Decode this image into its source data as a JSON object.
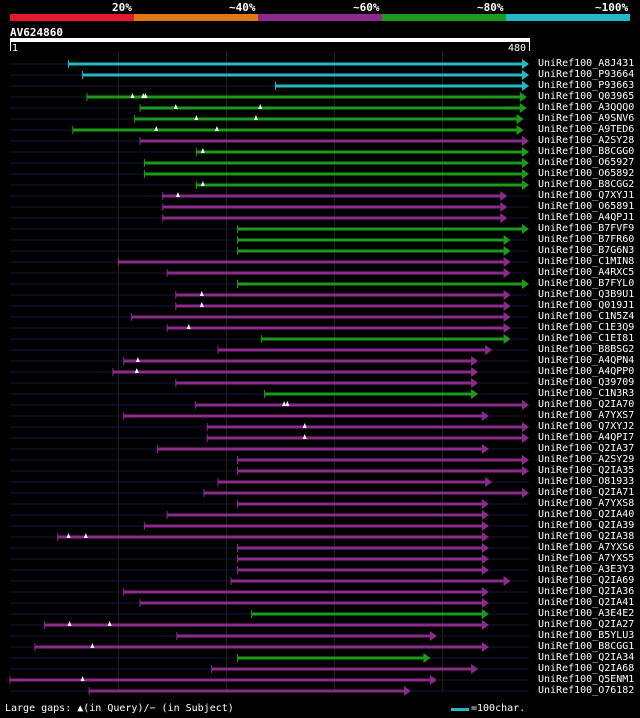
{
  "legend": {
    "labels": [
      "20%",
      "~40%",
      "~60%",
      "~80%",
      "~100%"
    ],
    "colors": [
      "#e01b2e",
      "#e07818",
      "#8c2a8c",
      "#1c9a1c",
      "#22b8c4"
    ]
  },
  "query": {
    "id": "AV624860",
    "start_label": "1",
    "end_label": "480",
    "length": 480
  },
  "footer": {
    "text": "Large gaps: ▲(in Query)/− (in Subject)",
    "scale_text": "=100char."
  },
  "hits": [
    {
      "id": "UniRef100_A8J431",
      "q_start": 55,
      "q_end": 480,
      "tier": 4,
      "row": 0
    },
    {
      "id": "UniRef100_P93664",
      "q_start": 68,
      "q_end": 480,
      "tier": 4,
      "row": 1
    },
    {
      "id": "UniRef100_P93663",
      "q_start": 246,
      "q_end": 480,
      "tier": 4,
      "row": 2
    },
    {
      "id": "UniRef100_Q03965",
      "q_start": 72,
      "q_end": 478,
      "tier": 3,
      "row": 3
    },
    {
      "id": "UniRef100_A3QQQ0",
      "q_start": 121,
      "q_end": 478,
      "tier": 3,
      "row": 4
    },
    {
      "id": "UniRef100_A9SNV6",
      "q_start": 116,
      "q_end": 475,
      "tier": 3,
      "row": 5
    },
    {
      "id": "UniRef100_A9TED6",
      "q_start": 59,
      "q_end": 475,
      "tier": 3,
      "row": 6
    },
    {
      "id": "UniRef100_A2SY28",
      "q_start": 121,
      "q_end": 480,
      "tier": 2,
      "row": 7
    },
    {
      "id": "UniRef100_B8CGG0",
      "q_start": 173,
      "q_end": 480,
      "tier": 3,
      "row": 8
    },
    {
      "id": "UniRef100_O65927",
      "q_start": 125,
      "q_end": 480,
      "tier": 3,
      "row": 9
    },
    {
      "id": "UniRef100_O65892",
      "q_start": 125,
      "q_end": 480,
      "tier": 3,
      "row": 10
    },
    {
      "id": "UniRef100_B8CGG2",
      "q_start": 173,
      "q_end": 480,
      "tier": 3,
      "row": 11
    },
    {
      "id": "UniRef100_Q7XYJ1",
      "q_start": 142,
      "q_end": 460,
      "tier": 2,
      "row": 12
    },
    {
      "id": "UniRef100_O65891",
      "q_start": 142,
      "q_end": 460,
      "tier": 2,
      "row": 13
    },
    {
      "id": "UniRef100_A4QPJ1",
      "q_start": 142,
      "q_end": 460,
      "tier": 2,
      "row": 14
    },
    {
      "id": "UniRef100_B7FVF9",
      "q_start": 211,
      "q_end": 480,
      "tier": 3,
      "row": 15
    },
    {
      "id": "UniRef100_B7FR60",
      "q_start": 211,
      "q_end": 463,
      "tier": 3,
      "row": 16
    },
    {
      "id": "UniRef100_B7G6N3",
      "q_start": 211,
      "q_end": 463,
      "tier": 3,
      "row": 17
    },
    {
      "id": "UniRef100_C1MIN8",
      "q_start": 101,
      "q_end": 463,
      "tier": 2,
      "row": 18
    },
    {
      "id": "UniRef100_A4RXC5",
      "q_start": 146,
      "q_end": 463,
      "tier": 2,
      "row": 19
    },
    {
      "id": "UniRef100_B7FYL0",
      "q_start": 211,
      "q_end": 480,
      "tier": 3,
      "row": 20
    },
    {
      "id": "UniRef100_Q3B9U1",
      "q_start": 154,
      "q_end": 463,
      "tier": 2,
      "row": 21
    },
    {
      "id": "UniRef100_Q019J1",
      "q_start": 154,
      "q_end": 463,
      "tier": 2,
      "row": 22
    },
    {
      "id": "UniRef100_C1N5Z4",
      "q_start": 113,
      "q_end": 463,
      "tier": 2,
      "row": 23
    },
    {
      "id": "UniRef100_C1E3Q9",
      "q_start": 146,
      "q_end": 463,
      "tier": 2,
      "row": 24
    },
    {
      "id": "UniRef100_C1EI81",
      "q_start": 233,
      "q_end": 463,
      "tier": 3,
      "row": 25
    },
    {
      "id": "UniRef100_B8BSG2",
      "q_start": 193,
      "q_end": 446,
      "tier": 2,
      "row": 26
    },
    {
      "id": "UniRef100_A4QPN4",
      "q_start": 106,
      "q_end": 433,
      "tier": 2,
      "row": 27
    },
    {
      "id": "UniRef100_A4QPP0",
      "q_start": 96,
      "q_end": 433,
      "tier": 2,
      "row": 28
    },
    {
      "id": "UniRef100_Q39709",
      "q_start": 154,
      "q_end": 433,
      "tier": 2,
      "row": 29
    },
    {
      "id": "UniRef100_C1N3R3",
      "q_start": 236,
      "q_end": 433,
      "tier": 3,
      "row": 30
    },
    {
      "id": "UniRef100_Q2IA70",
      "q_start": 172,
      "q_end": 480,
      "tier": 2,
      "row": 31
    },
    {
      "id": "UniRef100_A7YXS7",
      "q_start": 106,
      "q_end": 443,
      "tier": 2,
      "row": 32
    },
    {
      "id": "UniRef100_Q7XYJ2",
      "q_start": 183,
      "q_end": 480,
      "tier": 2,
      "row": 33
    },
    {
      "id": "UniRef100_A4QPI7",
      "q_start": 183,
      "q_end": 480,
      "tier": 2,
      "row": 34
    },
    {
      "id": "UniRef100_Q2IA37",
      "q_start": 137,
      "q_end": 443,
      "tier": 2,
      "row": 35
    },
    {
      "id": "UniRef100_A2SY29",
      "q_start": 211,
      "q_end": 480,
      "tier": 2,
      "row": 36
    },
    {
      "id": "UniRef100_Q2IA35",
      "q_start": 211,
      "q_end": 480,
      "tier": 2,
      "row": 37
    },
    {
      "id": "UniRef100_O81933",
      "q_start": 193,
      "q_end": 446,
      "tier": 2,
      "row": 38
    },
    {
      "id": "UniRef100_Q2IA71",
      "q_start": 180,
      "q_end": 480,
      "tier": 2,
      "row": 39
    },
    {
      "id": "UniRef100_A7YXS8",
      "q_start": 211,
      "q_end": 443,
      "tier": 2,
      "row": 40
    },
    {
      "id": "UniRef100_Q2IA40",
      "q_start": 146,
      "q_end": 443,
      "tier": 2,
      "row": 41
    },
    {
      "id": "UniRef100_Q2IA39",
      "q_start": 125,
      "q_end": 443,
      "tier": 2,
      "row": 42
    },
    {
      "id": "UniRef100_Q2IA38",
      "q_start": 45,
      "q_end": 443,
      "tier": 2,
      "row": 43
    },
    {
      "id": "UniRef100_A7YXS6",
      "q_start": 211,
      "q_end": 443,
      "tier": 2,
      "row": 44
    },
    {
      "id": "UniRef100_A7YXS5",
      "q_start": 211,
      "q_end": 443,
      "tier": 2,
      "row": 45
    },
    {
      "id": "UniRef100_A3E3Y3",
      "q_start": 211,
      "q_end": 443,
      "tier": 2,
      "row": 46
    },
    {
      "id": "UniRef100_Q2IA69",
      "q_start": 205,
      "q_end": 463,
      "tier": 2,
      "row": 47
    },
    {
      "id": "UniRef100_Q2IA36",
      "q_start": 106,
      "q_end": 443,
      "tier": 2,
      "row": 48
    },
    {
      "id": "UniRef100_Q2IA41",
      "q_start": 121,
      "q_end": 443,
      "tier": 2,
      "row": 49
    },
    {
      "id": "UniRef100_A3E4E2",
      "q_start": 224,
      "q_end": 443,
      "tier": 3,
      "row": 50
    },
    {
      "id": "UniRef100_Q2IA27",
      "q_start": 33,
      "q_end": 443,
      "tier": 2,
      "row": 51
    },
    {
      "id": "UniRef100_B5YLU3",
      "q_start": 155,
      "q_end": 395,
      "tier": 2,
      "row": 52
    },
    {
      "id": "UniRef100_B8CGG1",
      "q_start": 24,
      "q_end": 443,
      "tier": 2,
      "row": 53
    },
    {
      "id": "UniRef100_Q2IA34",
      "q_start": 211,
      "q_end": 389,
      "tier": 3,
      "row": 54
    },
    {
      "id": "UniRef100_Q2IA68",
      "q_start": 187,
      "q_end": 433,
      "tier": 2,
      "row": 55
    },
    {
      "id": "UniRef100_Q5ENM1",
      "q_start": 1,
      "q_end": 395,
      "tier": 2,
      "row": 56
    },
    {
      "id": "UniRef100_O76182",
      "q_start": 74,
      "q_end": 371,
      "tier": 2,
      "row": 57
    }
  ],
  "gap_markers": [
    {
      "row": 3,
      "pos": [
        114,
        124,
        126
      ]
    },
    {
      "row": 4,
      "pos": [
        154,
        232
      ]
    },
    {
      "row": 5,
      "pos": [
        173,
        228
      ]
    },
    {
      "row": 6,
      "pos": [
        136,
        192
      ]
    },
    {
      "row": 8,
      "pos": [
        179
      ]
    },
    {
      "row": 11,
      "pos": [
        179
      ]
    },
    {
      "row": 12,
      "pos": [
        156
      ]
    },
    {
      "row": 21,
      "pos": [
        178
      ]
    },
    {
      "row": 22,
      "pos": [
        178
      ]
    },
    {
      "row": 24,
      "pos": [
        166
      ]
    },
    {
      "row": 27,
      "pos": [
        119
      ]
    },
    {
      "row": 28,
      "pos": [
        118
      ]
    },
    {
      "row": 31,
      "pos": [
        254,
        257
      ]
    },
    {
      "row": 33,
      "pos": [
        273
      ]
    },
    {
      "row": 34,
      "pos": [
        273
      ]
    },
    {
      "row": 43,
      "pos": [
        55,
        71
      ]
    },
    {
      "row": 51,
      "pos": [
        56,
        93
      ]
    },
    {
      "row": 53,
      "pos": [
        77
      ]
    },
    {
      "row": 56,
      "pos": [
        68
      ]
    }
  ]
}
